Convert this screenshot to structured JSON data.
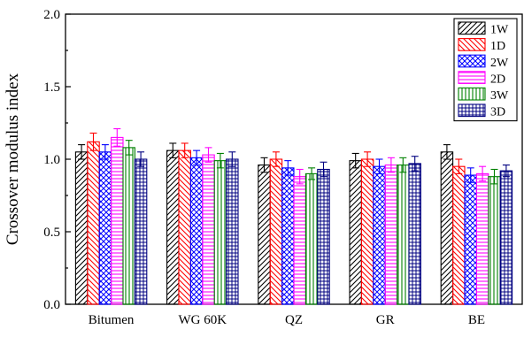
{
  "chart_data": {
    "type": "bar",
    "title": "",
    "xlabel": "",
    "ylabel": "Crossover modulus index",
    "ylim": [
      0.0,
      2.0
    ],
    "yticks": [
      "0.0",
      "0.5",
      "1.0",
      "1.5",
      "2.0"
    ],
    "categories": [
      "Bitumen",
      "WG 60K",
      "QZ",
      "GR",
      "BE"
    ],
    "legend_position": "top-right",
    "grid": false,
    "series": [
      {
        "name": "1W",
        "color": "#000000",
        "pattern": "diag-right",
        "values": [
          1.05,
          1.06,
          0.96,
          0.99,
          1.05
        ],
        "errors": [
          0.05,
          0.05,
          0.05,
          0.05,
          0.05
        ]
      },
      {
        "name": "1D",
        "color": "#ff0000",
        "pattern": "diag-left",
        "values": [
          1.12,
          1.06,
          1.0,
          1.0,
          0.95
        ],
        "errors": [
          0.06,
          0.05,
          0.05,
          0.05,
          0.05
        ]
      },
      {
        "name": "2W",
        "color": "#0000ff",
        "pattern": "cross-hatch",
        "values": [
          1.05,
          1.01,
          0.94,
          0.95,
          0.89
        ],
        "errors": [
          0.05,
          0.05,
          0.05,
          0.05,
          0.05
        ]
      },
      {
        "name": "2D",
        "color": "#ff00ff",
        "pattern": "horizontal",
        "values": [
          1.15,
          1.03,
          0.88,
          0.96,
          0.9
        ],
        "errors": [
          0.06,
          0.05,
          0.05,
          0.05,
          0.05
        ]
      },
      {
        "name": "3W",
        "color": "#008000",
        "pattern": "vertical",
        "values": [
          1.08,
          0.99,
          0.9,
          0.96,
          0.88
        ],
        "errors": [
          0.05,
          0.05,
          0.04,
          0.05,
          0.05
        ]
      },
      {
        "name": "3D",
        "color": "#000080",
        "pattern": "grid",
        "values": [
          1.0,
          1.0,
          0.93,
          0.97,
          0.92
        ],
        "errors": [
          0.05,
          0.05,
          0.05,
          0.05,
          0.04
        ]
      }
    ]
  }
}
